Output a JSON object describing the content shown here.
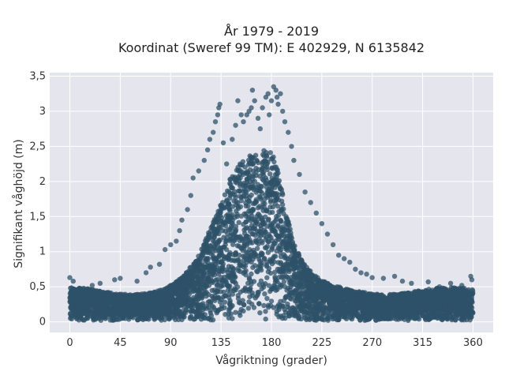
{
  "chart_data": {
    "type": "scatter",
    "title_line1": "År 1979 - 2019",
    "title_line2": "Koordinat (Sweref 99 TM): E 402929, N 6135842",
    "xlabel": "Vågriktning (grader)",
    "ylabel": "Signifikant våghöjd (m)",
    "xlim": [
      -18,
      378
    ],
    "ylim": [
      -0.15,
      3.55
    ],
    "xticks": [
      0,
      45,
      90,
      135,
      180,
      225,
      270,
      315,
      360
    ],
    "xtick_labels": [
      "0",
      "45",
      "90",
      "135",
      "180",
      "225",
      "270",
      "315",
      "360"
    ],
    "yticks": [
      0,
      0.5,
      1,
      1.5,
      2,
      2.5,
      3,
      3.5
    ],
    "ytick_labels": [
      "0",
      "0,5",
      "1",
      "1,5",
      "2",
      "2,5",
      "3",
      "3,5"
    ],
    "grid": true,
    "plot_background": "#e5e5ee",
    "marker_color": "#2e5268",
    "outlier_points": [
      [
        0,
        0.63
      ],
      [
        3,
        0.58
      ],
      [
        20,
        0.52
      ],
      [
        27,
        0.55
      ],
      [
        40,
        0.6
      ],
      [
        45,
        0.62
      ],
      [
        60,
        0.58
      ],
      [
        68,
        0.7
      ],
      [
        72,
        0.78
      ],
      [
        80,
        0.82
      ],
      [
        85,
        1.03
      ],
      [
        90,
        1.1
      ],
      [
        95,
        1.15
      ],
      [
        98,
        1.3
      ],
      [
        100,
        1.45
      ],
      [
        105,
        1.6
      ],
      [
        108,
        1.8
      ],
      [
        110,
        2.05
      ],
      [
        115,
        2.15
      ],
      [
        120,
        2.3
      ],
      [
        123,
        2.45
      ],
      [
        125,
        2.6
      ],
      [
        128,
        2.7
      ],
      [
        130,
        2.85
      ],
      [
        132,
        2.95
      ],
      [
        133,
        3.05
      ],
      [
        134,
        3.1
      ],
      [
        137,
        2.55
      ],
      [
        140,
        2.25
      ],
      [
        145,
        2.6
      ],
      [
        148,
        2.8
      ],
      [
        150,
        3.15
      ],
      [
        153,
        2.95
      ],
      [
        155,
        2.85
      ],
      [
        158,
        2.95
      ],
      [
        160,
        3.0
      ],
      [
        162,
        3.05
      ],
      [
        163,
        3.3
      ],
      [
        165,
        3.15
      ],
      [
        168,
        2.9
      ],
      [
        170,
        2.75
      ],
      [
        172,
        3.05
      ],
      [
        175,
        3.2
      ],
      [
        177,
        3.25
      ],
      [
        178,
        2.95
      ],
      [
        180,
        3.15
      ],
      [
        182,
        3.35
      ],
      [
        184,
        3.3
      ],
      [
        185,
        3.2
      ],
      [
        186,
        3.1
      ],
      [
        188,
        3.25
      ],
      [
        190,
        3.0
      ],
      [
        192,
        2.85
      ],
      [
        195,
        2.7
      ],
      [
        198,
        2.5
      ],
      [
        200,
        2.3
      ],
      [
        205,
        2.1
      ],
      [
        210,
        1.85
      ],
      [
        215,
        1.7
      ],
      [
        220,
        1.55
      ],
      [
        225,
        1.4
      ],
      [
        230,
        1.25
      ],
      [
        235,
        1.1
      ],
      [
        240,
        0.95
      ],
      [
        245,
        0.9
      ],
      [
        250,
        0.85
      ],
      [
        255,
        0.75
      ],
      [
        260,
        0.7
      ],
      [
        265,
        0.68
      ],
      [
        270,
        0.63
      ],
      [
        280,
        0.62
      ],
      [
        290,
        0.65
      ],
      [
        297,
        0.58
      ],
      [
        305,
        0.55
      ],
      [
        320,
        0.57
      ],
      [
        330,
        0.5
      ],
      [
        340,
        0.55
      ],
      [
        350,
        0.52
      ],
      [
        358,
        0.65
      ],
      [
        359,
        0.6
      ]
    ]
  }
}
